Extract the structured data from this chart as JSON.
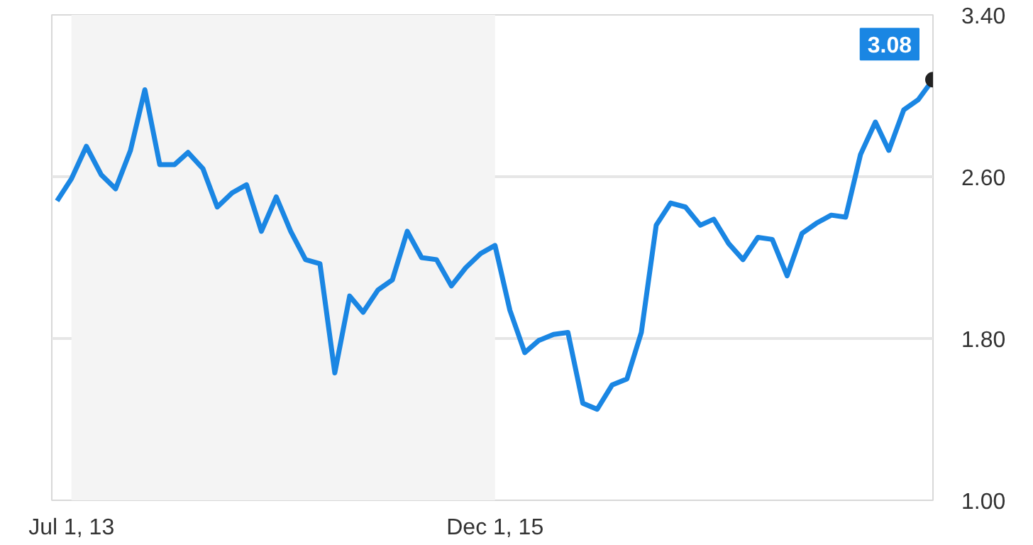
{
  "chart_data": {
    "type": "line",
    "x": [
      "2013-06-01",
      "2013-07-01",
      "2013-08-01",
      "2013-09-01",
      "2013-10-01",
      "2013-11-01",
      "2013-12-01",
      "2014-01-01",
      "2014-02-01",
      "2014-03-01",
      "2014-04-01",
      "2014-05-01",
      "2014-06-01",
      "2014-07-01",
      "2014-08-01",
      "2014-09-01",
      "2014-10-01",
      "2014-11-01",
      "2014-12-01",
      "2015-01-01",
      "2015-02-01",
      "2015-03-01",
      "2015-04-01",
      "2015-05-01",
      "2015-06-01",
      "2015-07-01",
      "2015-08-01",
      "2015-09-01",
      "2015-10-01",
      "2015-11-01",
      "2015-12-01",
      "2016-01-01",
      "2016-02-01",
      "2016-03-01",
      "2016-04-01",
      "2016-05-01",
      "2016-06-01",
      "2016-07-01",
      "2016-08-01",
      "2016-09-01",
      "2016-10-01",
      "2016-11-01",
      "2016-12-01",
      "2017-01-01",
      "2017-02-01",
      "2017-03-01",
      "2017-04-01",
      "2017-05-01",
      "2017-06-01",
      "2017-07-01",
      "2017-08-01",
      "2017-09-01",
      "2017-10-01",
      "2017-11-01",
      "2017-12-01",
      "2018-01-01",
      "2018-02-01",
      "2018-03-01",
      "2018-04-01",
      "2018-05-01",
      "2018-06-01"
    ],
    "series": [
      {
        "color": "#1a86e3",
        "values": [
          2.48,
          2.59,
          2.75,
          2.61,
          2.54,
          2.73,
          3.03,
          2.66,
          2.66,
          2.72,
          2.64,
          2.45,
          2.52,
          2.56,
          2.33,
          2.5,
          2.33,
          2.19,
          2.17,
          1.63,
          2.01,
          1.93,
          2.04,
          2.09,
          2.33,
          2.2,
          2.19,
          2.06,
          2.15,
          2.22,
          2.26,
          1.94,
          1.73,
          1.79,
          1.82,
          1.83,
          1.48,
          1.45,
          1.57,
          1.6,
          1.83,
          2.36,
          2.47,
          2.45,
          2.36,
          2.39,
          2.27,
          2.19,
          2.3,
          2.29,
          2.11,
          2.32,
          2.37,
          2.41,
          2.4,
          2.71,
          2.87,
          2.73,
          2.93,
          2.98,
          3.08
        ]
      }
    ],
    "xlim": [
      "2013-05-21",
      "2018-06-01"
    ],
    "xticks": [
      {
        "value": "2013-07-01",
        "label": "Jul 1, 13"
      },
      {
        "value": "2015-12-01",
        "label": "Dec 1, 15"
      }
    ],
    "ylim": [
      1.0,
      3.4
    ],
    "yticks": [
      {
        "value": 1.0,
        "label": "1.00"
      },
      {
        "value": 1.8,
        "label": "1.80"
      },
      {
        "value": 2.6,
        "label": "2.60"
      },
      {
        "value": 3.4,
        "label": "3.40"
      }
    ],
    "bands": [
      {
        "axis": "x",
        "from": "2013-07-01",
        "to": "2015-12-01",
        "color": "#f4f4f4"
      }
    ],
    "annotations": [
      {
        "text": "3.08",
        "x": "2018-06-01",
        "y": 3.08
      }
    ],
    "grid": "y",
    "marker": "none",
    "line_style": "solid"
  }
}
